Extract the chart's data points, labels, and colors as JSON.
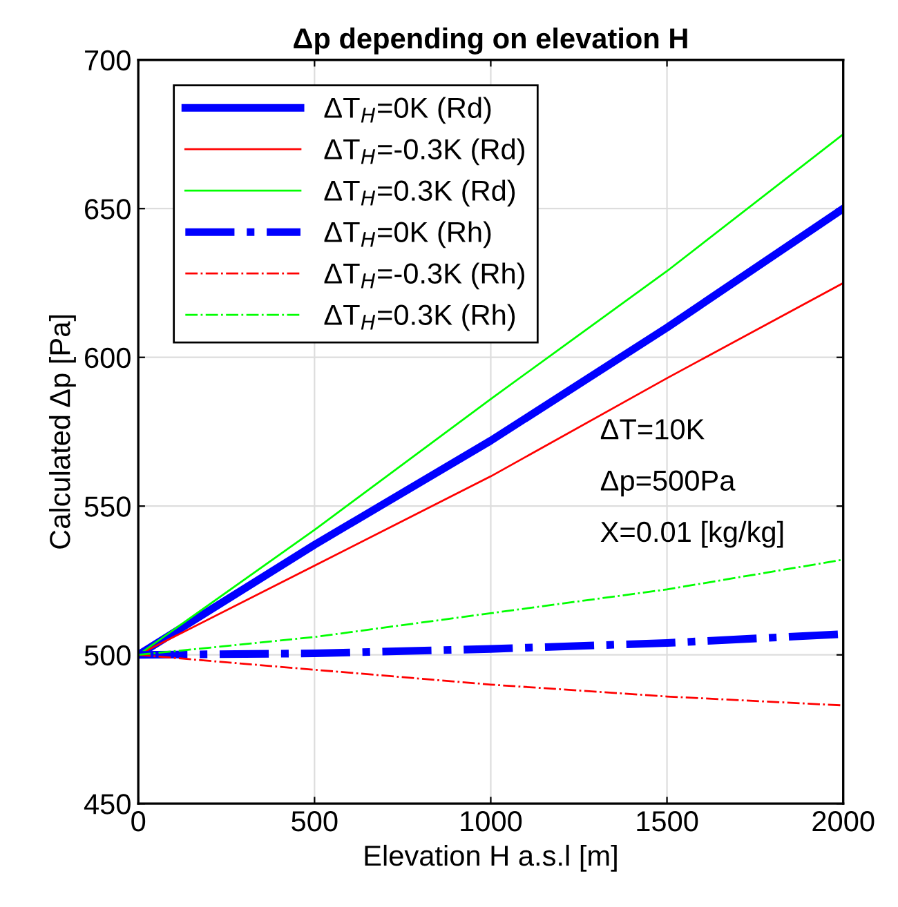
{
  "chart_data": {
    "type": "line",
    "title": "Δp depending on elevation H",
    "xlabel": "Elevation H a.s.l [m]",
    "ylabel": "Calculated Δp [Pa]",
    "x": [
      0,
      500,
      1000,
      1500,
      2000
    ],
    "series": [
      {
        "name": "ΔT$_{H}$=0K (Rd)",
        "color": "#0000ff",
        "line_style": "solid",
        "values": [
          500,
          537,
          572,
          610,
          650
        ]
      },
      {
        "name": "ΔT$_{H}$=-0.3K (Rd)",
        "color": "#ff0000",
        "line_style": "solid",
        "values": [
          500,
          530,
          560,
          593,
          625
        ]
      },
      {
        "name": "ΔT$_{H}$=0.3K (Rd)",
        "color": "#00ff00",
        "line_style": "solid",
        "values": [
          500,
          542,
          586,
          629,
          675
        ]
      },
      {
        "name": "ΔT$_{H}$=0K (Rh)",
        "color": "#0000ff",
        "line_style": "dashdot",
        "values": [
          500,
          500.5,
          502,
          504,
          507
        ]
      },
      {
        "name": "ΔT$_{H}$=-0.3K (Rh)",
        "color": "#ff0000",
        "line_style": "dashdot",
        "values": [
          500,
          495,
          490,
          486,
          483
        ]
      },
      {
        "name": "ΔT$_{H}$=0.3K (Rh)",
        "color": "#00ff00",
        "line_style": "dashdot",
        "values": [
          500,
          506,
          514,
          522,
          532
        ]
      }
    ],
    "annotations": [
      "ΔT=10K",
      "Δp=500Pa",
      "X=0.01 [kg/kg]"
    ],
    "xlim": [
      0,
      2000
    ],
    "xticks": [
      0,
      500,
      1000,
      1500,
      2000
    ],
    "ylim": [
      450,
      700
    ],
    "yticks": [
      450,
      500,
      550,
      600,
      650,
      700
    ],
    "grid": true,
    "legend": "top left"
  }
}
